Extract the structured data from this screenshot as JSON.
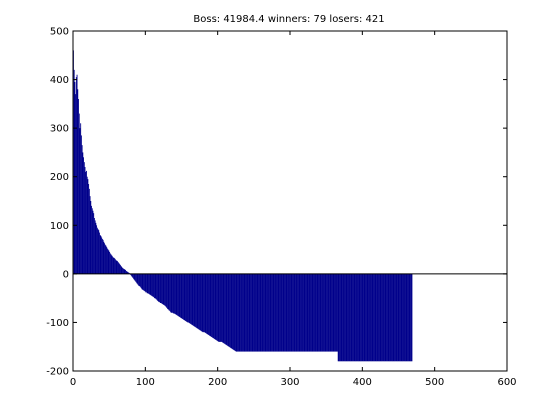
{
  "chart_data": {
    "type": "bar",
    "title": "Boss: 41984.4 winners: 79 losers: 421",
    "xlabel": "",
    "ylabel": "",
    "xlim": [
      0,
      600
    ],
    "ylim": [
      -200,
      500
    ],
    "grid": false,
    "xticks": [
      0,
      100,
      200,
      300,
      400,
      500,
      600
    ],
    "yticks": [
      500,
      400,
      300,
      200,
      100,
      0,
      -100,
      -200
    ],
    "bar_color": "#00008B",
    "series": [
      {
        "values": [
          460,
          420,
          395,
          370,
          405,
          410,
          380,
          360,
          330,
          300,
          310,
          285,
          265,
          250,
          240,
          230,
          220,
          210,
          212,
          200,
          195,
          185,
          175,
          160,
          150,
          140,
          135,
          130,
          125,
          115,
          110,
          105,
          100,
          95,
          92,
          90,
          85,
          80,
          78,
          75,
          72,
          70,
          66,
          63,
          60,
          58,
          55,
          52,
          50,
          48,
          45,
          42,
          40,
          38,
          36,
          34,
          33,
          32,
          30,
          28,
          27,
          26,
          24,
          22,
          20,
          18,
          16,
          14,
          12,
          11,
          10,
          9,
          8,
          6,
          5,
          4,
          3,
          2,
          1,
          -2,
          -4,
          -6,
          -8,
          -10,
          -12,
          -14,
          -16,
          -18,
          -20,
          -22,
          -24,
          -25,
          -26,
          -28,
          -30,
          -32,
          -33,
          -34,
          -35,
          -36,
          -38,
          -38,
          -40,
          -40,
          -41,
          -42,
          -43,
          -44,
          -45,
          -46,
          -47,
          -48,
          -50,
          -50,
          -52,
          -53,
          -55,
          -56,
          -58,
          -58,
          -60,
          -60,
          -61,
          -62,
          -63,
          -64,
          -65,
          -66,
          -68,
          -70,
          -72,
          -73,
          -75,
          -76,
          -78,
          -80,
          -80,
          -80,
          -81,
          -82,
          -82,
          -83,
          -84,
          -85,
          -86,
          -87,
          -88,
          -89,
          -90,
          -91,
          -92,
          -93,
          -94,
          -95,
          -96,
          -97,
          -98,
          -99,
          -100,
          -100,
          -101,
          -102,
          -103,
          -104,
          -105,
          -106,
          -107,
          -108,
          -109,
          -110,
          -111,
          -112,
          -113,
          -114,
          -115,
          -116,
          -117,
          -118,
          -119,
          -120,
          -120,
          -120,
          -121,
          -122,
          -123,
          -124,
          -125,
          -126,
          -127,
          -128,
          -129,
          -130,
          -131,
          -132,
          -133,
          -134,
          -135,
          -136,
          -137,
          -138,
          -139,
          -140,
          -140,
          -140,
          -140,
          -140,
          -141,
          -142,
          -143,
          -144,
          -145,
          -146,
          -147,
          -148,
          -149,
          -150,
          -151,
          -152,
          -153,
          -154,
          -155,
          -156,
          -157,
          -158,
          -159,
          -160,
          -160,
          -160,
          -160,
          -160,
          -160,
          -160,
          -160,
          -160,
          -160,
          -160,
          -160,
          -160,
          -160,
          -160,
          -160,
          -160,
          -160,
          -160,
          -160,
          -160,
          -160,
          -160,
          -160,
          -160,
          -160,
          -160,
          -160,
          -160,
          -160,
          -160,
          -160,
          -160,
          -160,
          -160,
          -160,
          -160,
          -160,
          -160,
          -160,
          -160,
          -160,
          -160,
          -160,
          -160,
          -160,
          -160,
          -160,
          -160,
          -160,
          -160,
          -160,
          -160,
          -160,
          -160,
          -160,
          -160,
          -160,
          -160,
          -160,
          -160,
          -160,
          -160,
          -160,
          -160,
          -160,
          -160,
          -160,
          -160,
          -160,
          -160,
          -160,
          -160,
          -160,
          -160,
          -160,
          -160,
          -160,
          -160,
          -160,
          -160,
          -160,
          -160,
          -160,
          -160,
          -160,
          -160,
          -160,
          -160,
          -160,
          -160,
          -160,
          -160,
          -160,
          -160,
          -160,
          -160,
          -160,
          -160,
          -160,
          -160,
          -160,
          -160,
          -160,
          -160,
          -160,
          -160,
          -160,
          -160,
          -160,
          -160,
          -160,
          -160,
          -160,
          -160,
          -160,
          -160,
          -160,
          -160,
          -160,
          -160,
          -160,
          -160,
          -160,
          -160,
          -160,
          -160,
          -160,
          -160,
          -160,
          -160,
          -160,
          -160,
          -160,
          -160,
          -160,
          -160,
          -160,
          -160,
          -160,
          -160,
          -180,
          -180,
          -180,
          -180,
          -180,
          -180,
          -180,
          -180,
          -180,
          -180,
          -180,
          -180,
          -180,
          -180,
          -180,
          -180,
          -180,
          -180,
          -180,
          -180,
          -180,
          -180,
          -180,
          -180,
          -180,
          -180,
          -180,
          -180,
          -180,
          -180,
          -180,
          -180,
          -180,
          -180,
          -180,
          -180,
          -180,
          -180,
          -180,
          -180,
          -180,
          -180,
          -180,
          -180,
          -180,
          -180,
          -180,
          -180,
          -180,
          -180,
          -180,
          -180,
          -180,
          -180,
          -180,
          -180,
          -180,
          -180,
          -180,
          -180,
          -180,
          -180,
          -180,
          -180,
          -180,
          -180,
          -180,
          -180,
          -180,
          -180,
          -180,
          -180,
          -180,
          -180,
          -180,
          -180,
          -180,
          -180,
          -180,
          -180,
          -180,
          -180,
          -180,
          -180,
          -180,
          -180,
          -180,
          -180,
          -180,
          -180,
          -180,
          -180,
          -180,
          -180,
          -180,
          -180,
          -180,
          -180,
          -180,
          -180,
          -180,
          -180,
          -180
        ]
      }
    ]
  }
}
